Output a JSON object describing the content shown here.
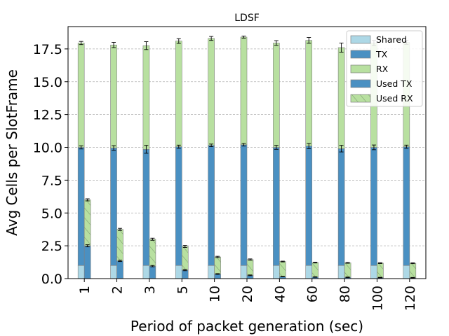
{
  "chart_data": {
    "type": "bar",
    "title": "LDSF",
    "xlabel": "Period of packet generation (sec)",
    "ylabel": "Avg Cells per SlotFrame",
    "categories": [
      "1",
      "2",
      "3",
      "5",
      "10",
      "20",
      "40",
      "60",
      "80",
      "100",
      "120"
    ],
    "ylim": [
      0,
      19.2
    ],
    "yticks": [
      "0.0",
      "2.5",
      "5.0",
      "7.5",
      "10.0",
      "12.5",
      "15.0",
      "17.5"
    ],
    "grid": true,
    "legend_position": "top-right",
    "stacks": {
      "allocated": [
        "Shared",
        "TX",
        "RX"
      ],
      "used": [
        "Used TX",
        "Used RX"
      ]
    },
    "series": [
      {
        "name": "Shared",
        "values": [
          1.0,
          1.0,
          1.0,
          1.0,
          1.0,
          1.0,
          1.0,
          1.0,
          1.0,
          1.0,
          1.0
        ]
      },
      {
        "name": "TX",
        "values": [
          9.0,
          8.95,
          8.85,
          9.05,
          9.15,
          9.2,
          9.0,
          9.1,
          8.9,
          9.0,
          9.05
        ]
      },
      {
        "name": "RX",
        "values": [
          7.95,
          7.85,
          7.9,
          8.05,
          8.15,
          8.2,
          7.95,
          8.05,
          7.7,
          7.95,
          7.95
        ]
      },
      {
        "name": "Used TX",
        "values": [
          2.5,
          1.35,
          0.95,
          0.65,
          0.35,
          0.25,
          0.15,
          0.12,
          0.1,
          0.08,
          0.07
        ]
      },
      {
        "name": "Used RX",
        "values": [
          3.5,
          2.4,
          2.05,
          1.8,
          1.3,
          1.2,
          1.15,
          1.1,
          1.1,
          1.1,
          1.1
        ]
      }
    ],
    "error_bars": {
      "allocated_top": [
        0.12,
        0.2,
        0.3,
        0.18,
        0.15,
        0.08,
        0.18,
        0.22,
        0.35,
        0.2,
        0.15
      ],
      "tx_top": [
        0.12,
        0.18,
        0.3,
        0.12,
        0.1,
        0.1,
        0.15,
        0.2,
        0.25,
        0.18,
        0.12
      ],
      "used_rx_top": [
        0.08,
        0.08,
        0.08,
        0.08,
        0.05,
        0.05,
        0.03,
        0.03,
        0.03,
        0.03,
        0.03
      ],
      "used_tx_top": [
        0.08,
        0.05,
        0.05,
        0.05,
        0.03,
        0.03,
        0.02,
        0.02,
        0.02,
        0.02,
        0.02
      ]
    },
    "colors": {
      "Shared": "#add8e6",
      "TX": "#4a90c2",
      "RX": "#b8e0a0",
      "Used TX": "#4a90c2",
      "Used RX": "#b8e0a0",
      "grid": "#b0b0b0",
      "hatch": "#7a9a70"
    }
  }
}
